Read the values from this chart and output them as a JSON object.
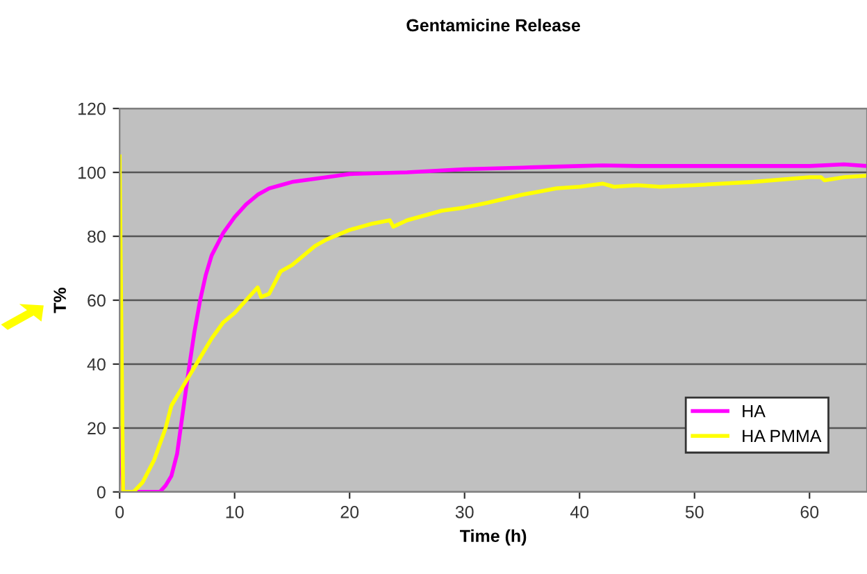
{
  "chart_data": {
    "type": "line",
    "title": "Gentamicine Release",
    "xlabel": "Time (h)",
    "ylabel": "T%",
    "xlim": [
      0,
      65
    ],
    "ylim": [
      0,
      120
    ],
    "xticks": [
      0,
      10,
      20,
      30,
      40,
      50,
      60
    ],
    "yticks": [
      0,
      20,
      40,
      60,
      80,
      100,
      120
    ],
    "grid": "y",
    "legend": "bottom right",
    "marker": "none",
    "line_style": "solid",
    "series": [
      {
        "name": "HA",
        "color": "#ff00ff",
        "x": [
          0,
          0.3,
          1,
          2,
          3,
          3.5,
          4,
          4.5,
          5,
          5.5,
          6,
          6.5,
          7,
          7.5,
          8,
          9,
          10,
          11,
          12,
          13,
          14,
          15,
          17,
          19,
          20,
          25,
          30,
          35,
          40,
          42,
          45,
          50,
          55,
          60,
          63,
          65
        ],
        "values": [
          20,
          0,
          0,
          0,
          0,
          0,
          2,
          5,
          12,
          25,
          38,
          50,
          60,
          68,
          74,
          81,
          86,
          90,
          93,
          95,
          96,
          97,
          98,
          99,
          99.5,
          100,
          101,
          101.5,
          102,
          102.2,
          102,
          102,
          102,
          102,
          102.5,
          102
        ]
      },
      {
        "name": "HA PMMA",
        "color": "#ffff00",
        "x": [
          0,
          0.3,
          1.2,
          2,
          3,
          4,
          4.5,
          5,
          6,
          7,
          8,
          9,
          10,
          11,
          12,
          12.3,
          13,
          14,
          15,
          16,
          17,
          18,
          20,
          22,
          23.5,
          23.8,
          25,
          28,
          30,
          32,
          35,
          38,
          40,
          42,
          43,
          45,
          47,
          50,
          55,
          60,
          61,
          61.3,
          63,
          65
        ],
        "values": [
          105,
          0,
          0,
          3,
          10,
          20,
          27,
          30,
          36,
          42,
          48,
          53,
          56,
          60,
          64,
          61,
          62,
          69,
          71,
          74,
          77,
          79,
          82,
          84,
          85,
          83,
          85,
          88,
          89,
          90.5,
          93,
          95,
          95.5,
          96.5,
          95.5,
          96,
          95.5,
          96,
          97,
          98.5,
          98.5,
          97.5,
          98.5,
          99
        ]
      }
    ]
  }
}
